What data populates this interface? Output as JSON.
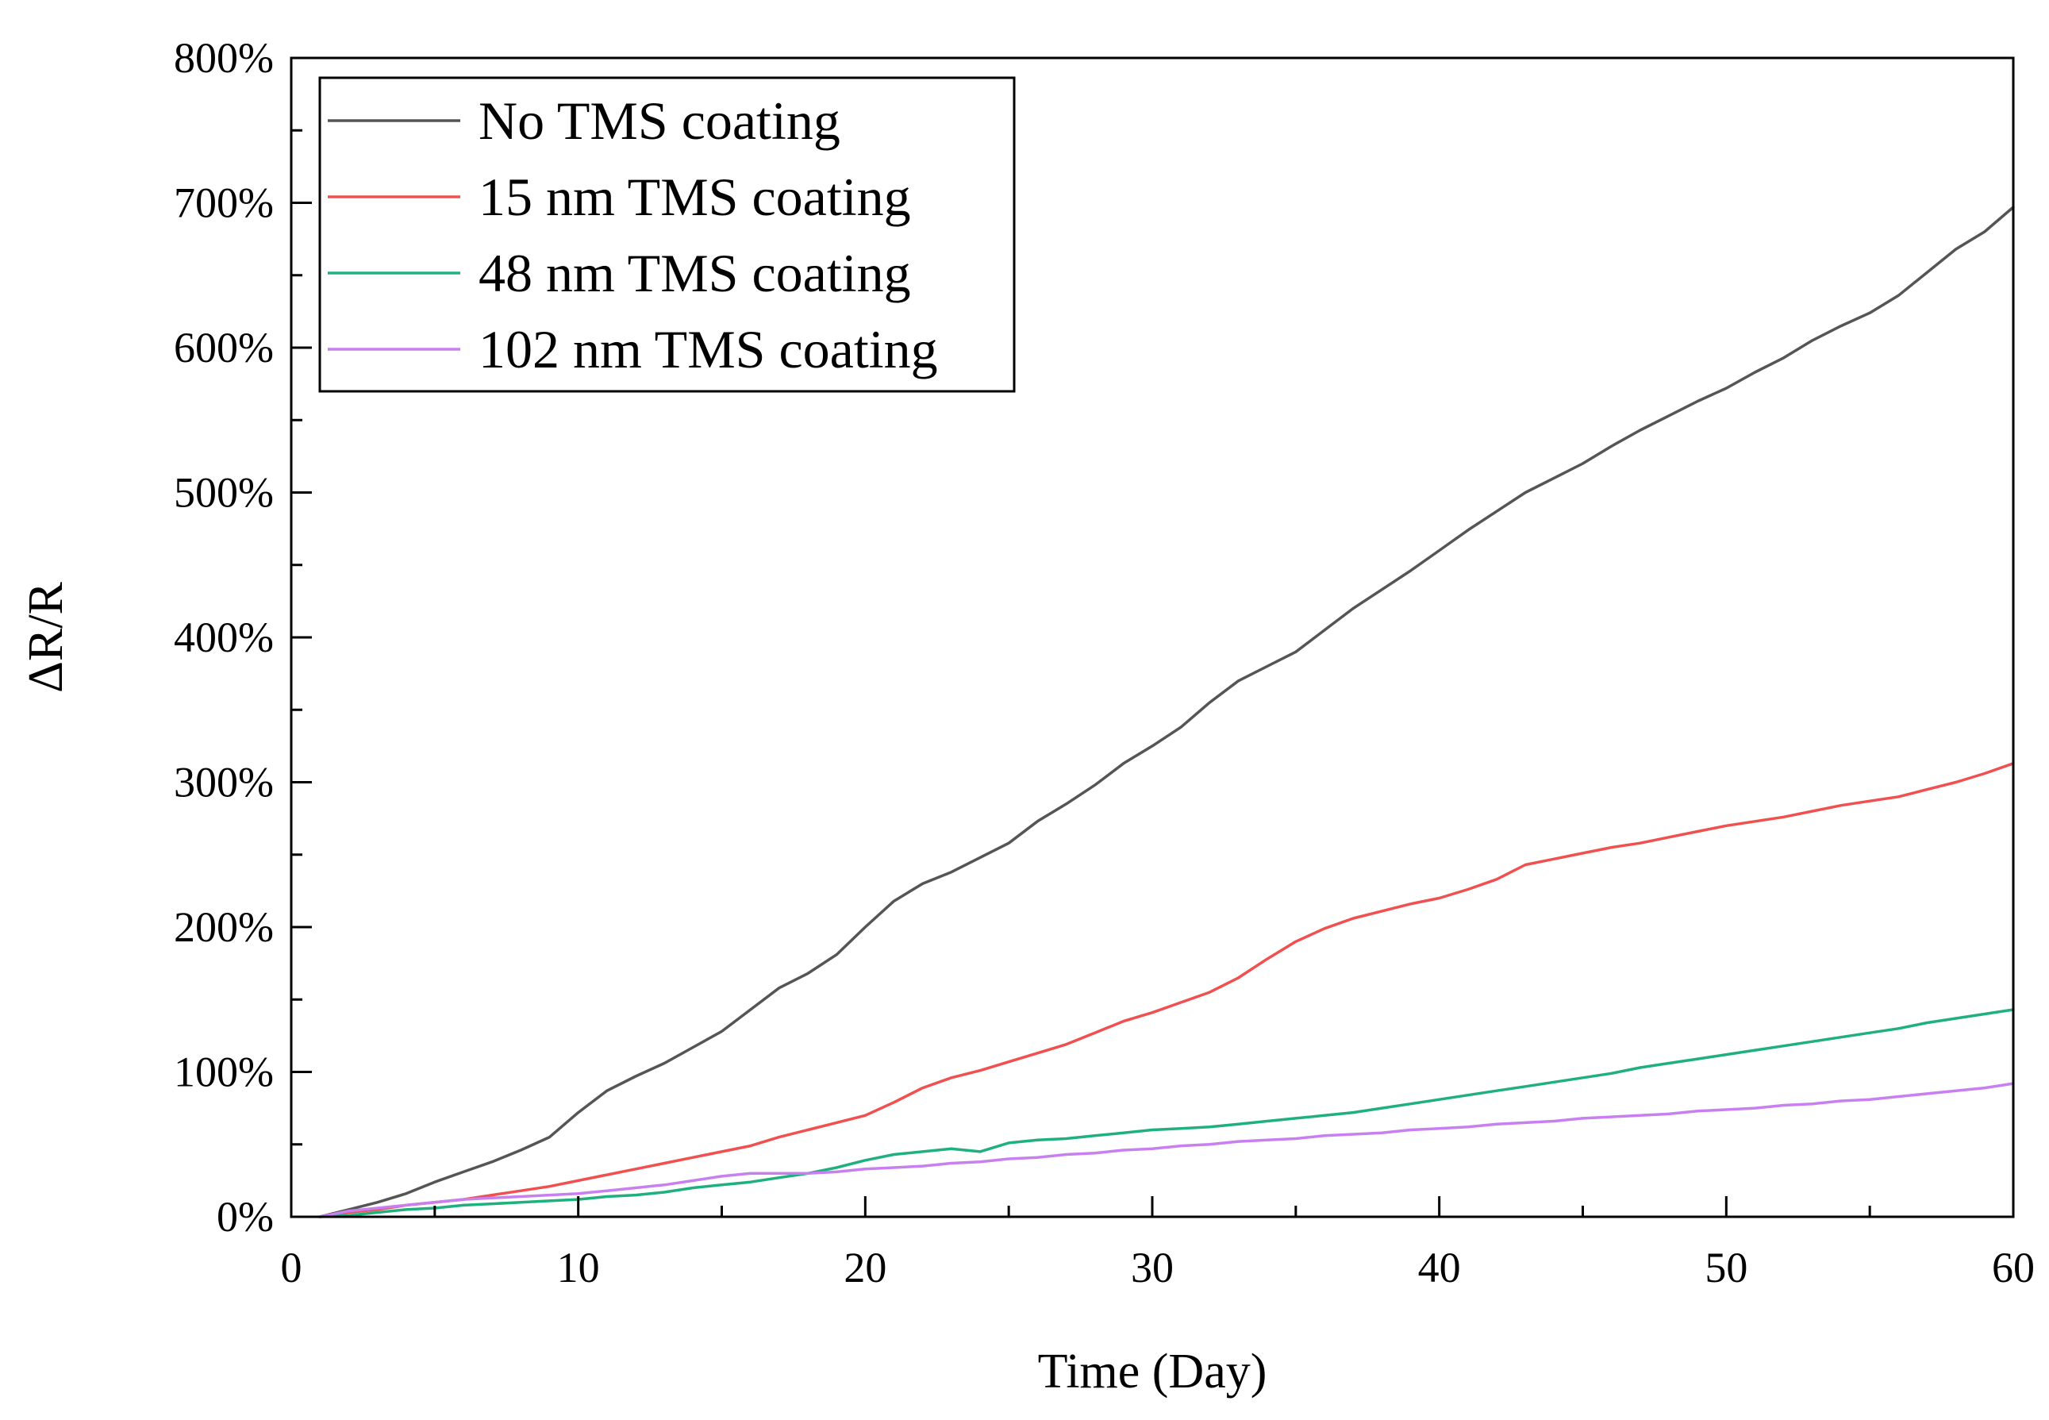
{
  "chart_data": {
    "type": "line",
    "title": "",
    "xlabel": "Time (Day)",
    "ylabel": "ΔR/R",
    "xlim": [
      0,
      60
    ],
    "ylim": [
      0,
      800
    ],
    "x_ticks": [
      0,
      10,
      20,
      30,
      40,
      50,
      60
    ],
    "x_tick_labels": [
      "0",
      "10",
      "20",
      "30",
      "40",
      "50",
      "60"
    ],
    "y_ticks": [
      0,
      100,
      200,
      300,
      400,
      500,
      600,
      700,
      800
    ],
    "y_tick_labels": [
      "0%",
      "100%",
      "200%",
      "300%",
      "400%",
      "500%",
      "600%",
      "700%",
      "800%"
    ],
    "grid": false,
    "legend_position": "top-left",
    "series": [
      {
        "name": "No TMS coating",
        "color": "#555555",
        "points": [
          [
            1,
            0
          ],
          [
            2,
            5
          ],
          [
            3,
            10
          ],
          [
            4,
            16
          ],
          [
            5,
            24
          ],
          [
            6,
            31
          ],
          [
            7,
            38
          ],
          [
            8,
            46
          ],
          [
            9,
            55
          ],
          [
            10,
            72
          ],
          [
            11,
            87
          ],
          [
            12,
            97
          ],
          [
            13,
            106
          ],
          [
            14,
            117
          ],
          [
            15,
            128
          ],
          [
            16,
            143
          ],
          [
            17,
            158
          ],
          [
            18,
            168
          ],
          [
            19,
            181
          ],
          [
            20,
            200
          ],
          [
            21,
            218
          ],
          [
            22,
            230
          ],
          [
            23,
            238
          ],
          [
            24,
            248
          ],
          [
            25,
            258
          ],
          [
            26,
            273
          ],
          [
            27,
            285
          ],
          [
            28,
            298
          ],
          [
            29,
            313
          ],
          [
            30,
            325
          ],
          [
            31,
            338
          ],
          [
            32,
            355
          ],
          [
            33,
            370
          ],
          [
            34,
            380
          ],
          [
            35,
            390
          ],
          [
            36,
            405
          ],
          [
            37,
            420
          ],
          [
            38,
            433
          ],
          [
            39,
            446
          ],
          [
            40,
            460
          ],
          [
            41,
            474
          ],
          [
            42,
            487
          ],
          [
            43,
            500
          ],
          [
            44,
            510
          ],
          [
            45,
            520
          ],
          [
            46,
            532
          ],
          [
            47,
            543
          ],
          [
            48,
            553
          ],
          [
            49,
            563
          ],
          [
            50,
            572
          ],
          [
            51,
            583
          ],
          [
            52,
            593
          ],
          [
            53,
            605
          ],
          [
            54,
            615
          ],
          [
            55,
            624
          ],
          [
            56,
            636
          ],
          [
            57,
            652
          ],
          [
            58,
            668
          ],
          [
            59,
            680
          ],
          [
            60,
            697
          ]
        ]
      },
      {
        "name": "15 nm TMS coating",
        "color": "#f05050",
        "points": [
          [
            1,
            0
          ],
          [
            2,
            3
          ],
          [
            3,
            5
          ],
          [
            4,
            8
          ],
          [
            5,
            10
          ],
          [
            6,
            12
          ],
          [
            7,
            15
          ],
          [
            8,
            18
          ],
          [
            9,
            21
          ],
          [
            10,
            25
          ],
          [
            11,
            29
          ],
          [
            12,
            33
          ],
          [
            13,
            37
          ],
          [
            14,
            41
          ],
          [
            15,
            45
          ],
          [
            16,
            49
          ],
          [
            17,
            55
          ],
          [
            18,
            60
          ],
          [
            19,
            65
          ],
          [
            20,
            70
          ],
          [
            21,
            79
          ],
          [
            22,
            89
          ],
          [
            23,
            96
          ],
          [
            24,
            101
          ],
          [
            25,
            107
          ],
          [
            26,
            113
          ],
          [
            27,
            119
          ],
          [
            28,
            127
          ],
          [
            29,
            135
          ],
          [
            30,
            141
          ],
          [
            31,
            148
          ],
          [
            32,
            155
          ],
          [
            33,
            165
          ],
          [
            34,
            178
          ],
          [
            35,
            190
          ],
          [
            36,
            199
          ],
          [
            37,
            206
          ],
          [
            38,
            211
          ],
          [
            39,
            216
          ],
          [
            40,
            220
          ],
          [
            41,
            226
          ],
          [
            42,
            233
          ],
          [
            43,
            243
          ],
          [
            44,
            247
          ],
          [
            45,
            251
          ],
          [
            46,
            255
          ],
          [
            47,
            258
          ],
          [
            48,
            262
          ],
          [
            49,
            266
          ],
          [
            50,
            270
          ],
          [
            51,
            273
          ],
          [
            52,
            276
          ],
          [
            53,
            280
          ],
          [
            54,
            284
          ],
          [
            55,
            287
          ],
          [
            56,
            290
          ],
          [
            57,
            295
          ],
          [
            58,
            300
          ],
          [
            59,
            306
          ],
          [
            60,
            313
          ]
        ]
      },
      {
        "name": "48 nm TMS coating",
        "color": "#20b080",
        "points": [
          [
            1,
            0
          ],
          [
            2,
            1
          ],
          [
            3,
            3
          ],
          [
            4,
            5
          ],
          [
            5,
            6
          ],
          [
            6,
            8
          ],
          [
            7,
            9
          ],
          [
            8,
            10
          ],
          [
            9,
            11
          ],
          [
            10,
            12
          ],
          [
            11,
            14
          ],
          [
            12,
            15
          ],
          [
            13,
            17
          ],
          [
            14,
            20
          ],
          [
            15,
            22
          ],
          [
            16,
            24
          ],
          [
            17,
            27
          ],
          [
            18,
            30
          ],
          [
            19,
            34
          ],
          [
            20,
            39
          ],
          [
            21,
            43
          ],
          [
            22,
            45
          ],
          [
            23,
            47
          ],
          [
            24,
            45
          ],
          [
            25,
            51
          ],
          [
            26,
            53
          ],
          [
            27,
            54
          ],
          [
            28,
            56
          ],
          [
            29,
            58
          ],
          [
            30,
            60
          ],
          [
            31,
            61
          ],
          [
            32,
            62
          ],
          [
            33,
            64
          ],
          [
            34,
            66
          ],
          [
            35,
            68
          ],
          [
            36,
            70
          ],
          [
            37,
            72
          ],
          [
            38,
            75
          ],
          [
            39,
            78
          ],
          [
            40,
            81
          ],
          [
            41,
            84
          ],
          [
            42,
            87
          ],
          [
            43,
            90
          ],
          [
            44,
            93
          ],
          [
            45,
            96
          ],
          [
            46,
            99
          ],
          [
            47,
            103
          ],
          [
            48,
            106
          ],
          [
            49,
            109
          ],
          [
            50,
            112
          ],
          [
            51,
            115
          ],
          [
            52,
            118
          ],
          [
            53,
            121
          ],
          [
            54,
            124
          ],
          [
            55,
            127
          ],
          [
            56,
            130
          ],
          [
            57,
            134
          ],
          [
            58,
            137
          ],
          [
            59,
            140
          ],
          [
            60,
            143
          ]
        ]
      },
      {
        "name": "102 nm TMS coating",
        "color": "#c880f0",
        "points": [
          [
            1,
            0
          ],
          [
            2,
            4
          ],
          [
            3,
            6
          ],
          [
            4,
            8
          ],
          [
            5,
            10
          ],
          [
            6,
            12
          ],
          [
            7,
            13
          ],
          [
            8,
            14
          ],
          [
            9,
            15
          ],
          [
            10,
            16
          ],
          [
            11,
            18
          ],
          [
            12,
            20
          ],
          [
            13,
            22
          ],
          [
            14,
            25
          ],
          [
            15,
            28
          ],
          [
            16,
            30
          ],
          [
            17,
            30
          ],
          [
            18,
            30
          ],
          [
            19,
            31
          ],
          [
            20,
            33
          ],
          [
            21,
            34
          ],
          [
            22,
            35
          ],
          [
            23,
            37
          ],
          [
            24,
            38
          ],
          [
            25,
            40
          ],
          [
            26,
            41
          ],
          [
            27,
            43
          ],
          [
            28,
            44
          ],
          [
            29,
            46
          ],
          [
            30,
            47
          ],
          [
            31,
            49
          ],
          [
            32,
            50
          ],
          [
            33,
            52
          ],
          [
            34,
            53
          ],
          [
            35,
            54
          ],
          [
            36,
            56
          ],
          [
            37,
            57
          ],
          [
            38,
            58
          ],
          [
            39,
            60
          ],
          [
            40,
            61
          ],
          [
            41,
            62
          ],
          [
            42,
            64
          ],
          [
            43,
            65
          ],
          [
            44,
            66
          ],
          [
            45,
            68
          ],
          [
            46,
            69
          ],
          [
            47,
            70
          ],
          [
            48,
            71
          ],
          [
            49,
            73
          ],
          [
            50,
            74
          ],
          [
            51,
            75
          ],
          [
            52,
            77
          ],
          [
            53,
            78
          ],
          [
            54,
            80
          ],
          [
            55,
            81
          ],
          [
            56,
            83
          ],
          [
            57,
            85
          ],
          [
            58,
            87
          ],
          [
            59,
            89
          ],
          [
            60,
            92
          ]
        ]
      }
    ]
  }
}
